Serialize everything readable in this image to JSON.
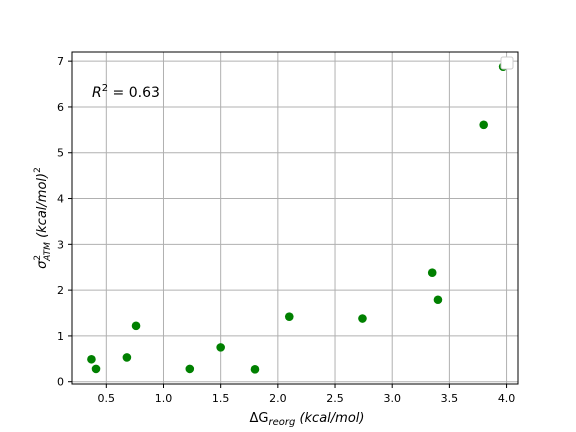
{
  "chart_data": {
    "type": "scatter",
    "xlabel_main": "ΔG",
    "xlabel_sub": "reorg",
    "xlabel_unit": " (kcal/mol)",
    "ylabel_main": "σ",
    "ylabel_sup": "2",
    "ylabel_sub": "ATM",
    "ylabel_unit": "  (kcal/mol)",
    "ylabel_unit_sup": "2",
    "annotation_main": "R",
    "annotation_sup": "2",
    "annotation_value": " = 0.63",
    "xlim": [
      0.2,
      4.1
    ],
    "ylim": [
      -0.05,
      7.2
    ],
    "grid": true,
    "x_ticks": [
      0.5,
      1.0,
      1.5,
      2.0,
      2.5,
      3.0,
      3.5,
      4.0
    ],
    "x_tick_labels": [
      "0.5",
      "1.0",
      "1.5",
      "2.0",
      "2.5",
      "3.0",
      "3.5",
      "4.0"
    ],
    "y_ticks": [
      0,
      1,
      2,
      3,
      4,
      5,
      6,
      7
    ],
    "y_tick_labels": [
      "0",
      "1",
      "2",
      "3",
      "4",
      "5",
      "6",
      "7"
    ],
    "marker_color": "#008000",
    "points": [
      {
        "x": 0.37,
        "y": 0.49
      },
      {
        "x": 0.41,
        "y": 0.28
      },
      {
        "x": 0.68,
        "y": 0.53
      },
      {
        "x": 0.76,
        "y": 1.22
      },
      {
        "x": 1.23,
        "y": 0.28
      },
      {
        "x": 1.5,
        "y": 0.75
      },
      {
        "x": 1.8,
        "y": 0.27
      },
      {
        "x": 2.1,
        "y": 1.42
      },
      {
        "x": 2.74,
        "y": 1.38
      },
      {
        "x": 3.35,
        "y": 2.38
      },
      {
        "x": 3.4,
        "y": 1.79
      },
      {
        "x": 3.8,
        "y": 5.61
      },
      {
        "x": 3.97,
        "y": 6.88
      }
    ]
  }
}
